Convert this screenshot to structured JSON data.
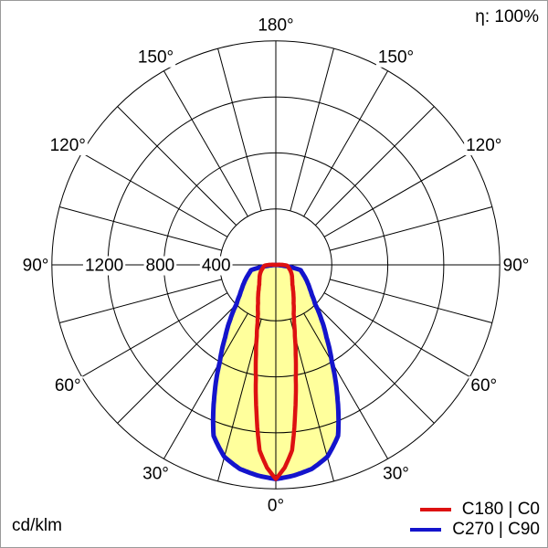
{
  "header": {
    "efficiency": "η: 100%"
  },
  "footer": {
    "unit": "cd/klm"
  },
  "legend": {
    "items": [
      {
        "label": "C180 | C0"
      },
      {
        "label": "C270 | C90"
      }
    ]
  },
  "chart_data": {
    "type": "polar_photometric_intensity",
    "unit": "cd/klm",
    "efficiency_label": "η: 100%",
    "angle_labels": [
      {
        "deg": 0,
        "label": "0°"
      },
      {
        "deg": 30,
        "label": "30°"
      },
      {
        "deg": 60,
        "label": "60°"
      },
      {
        "deg": 90,
        "label": "90°"
      },
      {
        "deg": 120,
        "label": "120°"
      },
      {
        "deg": 150,
        "label": "150°"
      },
      {
        "deg": 180,
        "label": "180°"
      }
    ],
    "grid_step_deg": 15,
    "radial_ticks": [
      {
        "value": 400,
        "label": "400"
      },
      {
        "value": 800,
        "label": "800"
      },
      {
        "value": 1200,
        "label": "1200"
      }
    ],
    "radial_max": 1600,
    "fill_color": "#ffff9c",
    "grid_color": "#000000",
    "series": [
      {
        "name": "C180 | C0",
        "color": "#dd1111",
        "gamma": [
          0,
          2.5,
          5,
          7.5,
          10,
          12.5,
          15,
          17.5,
          20,
          25,
          30,
          35,
          40,
          45,
          50,
          55,
          60,
          65,
          70,
          75,
          80,
          85,
          88,
          92,
          94
        ],
        "values": [
          1530,
          1450,
          1330,
          1060,
          820,
          655,
          525,
          435,
          372,
          300,
          252,
          213,
          184,
          166,
          152,
          141,
          130,
          119,
          108,
          98,
          90,
          84,
          70,
          30,
          0
        ]
      },
      {
        "name": "C270 | C90",
        "color": "#1414cc",
        "gamma": [
          0,
          5,
          10,
          15,
          20,
          25,
          30,
          35,
          40,
          45,
          50,
          55,
          60,
          65,
          70,
          75,
          78,
          82,
          86
        ],
        "values": [
          1530,
          1510,
          1480,
          1420,
          1300,
          1040,
          800,
          630,
          505,
          398,
          337,
          296,
          264,
          236,
          211,
          190,
          182,
          90,
          0
        ]
      }
    ]
  }
}
